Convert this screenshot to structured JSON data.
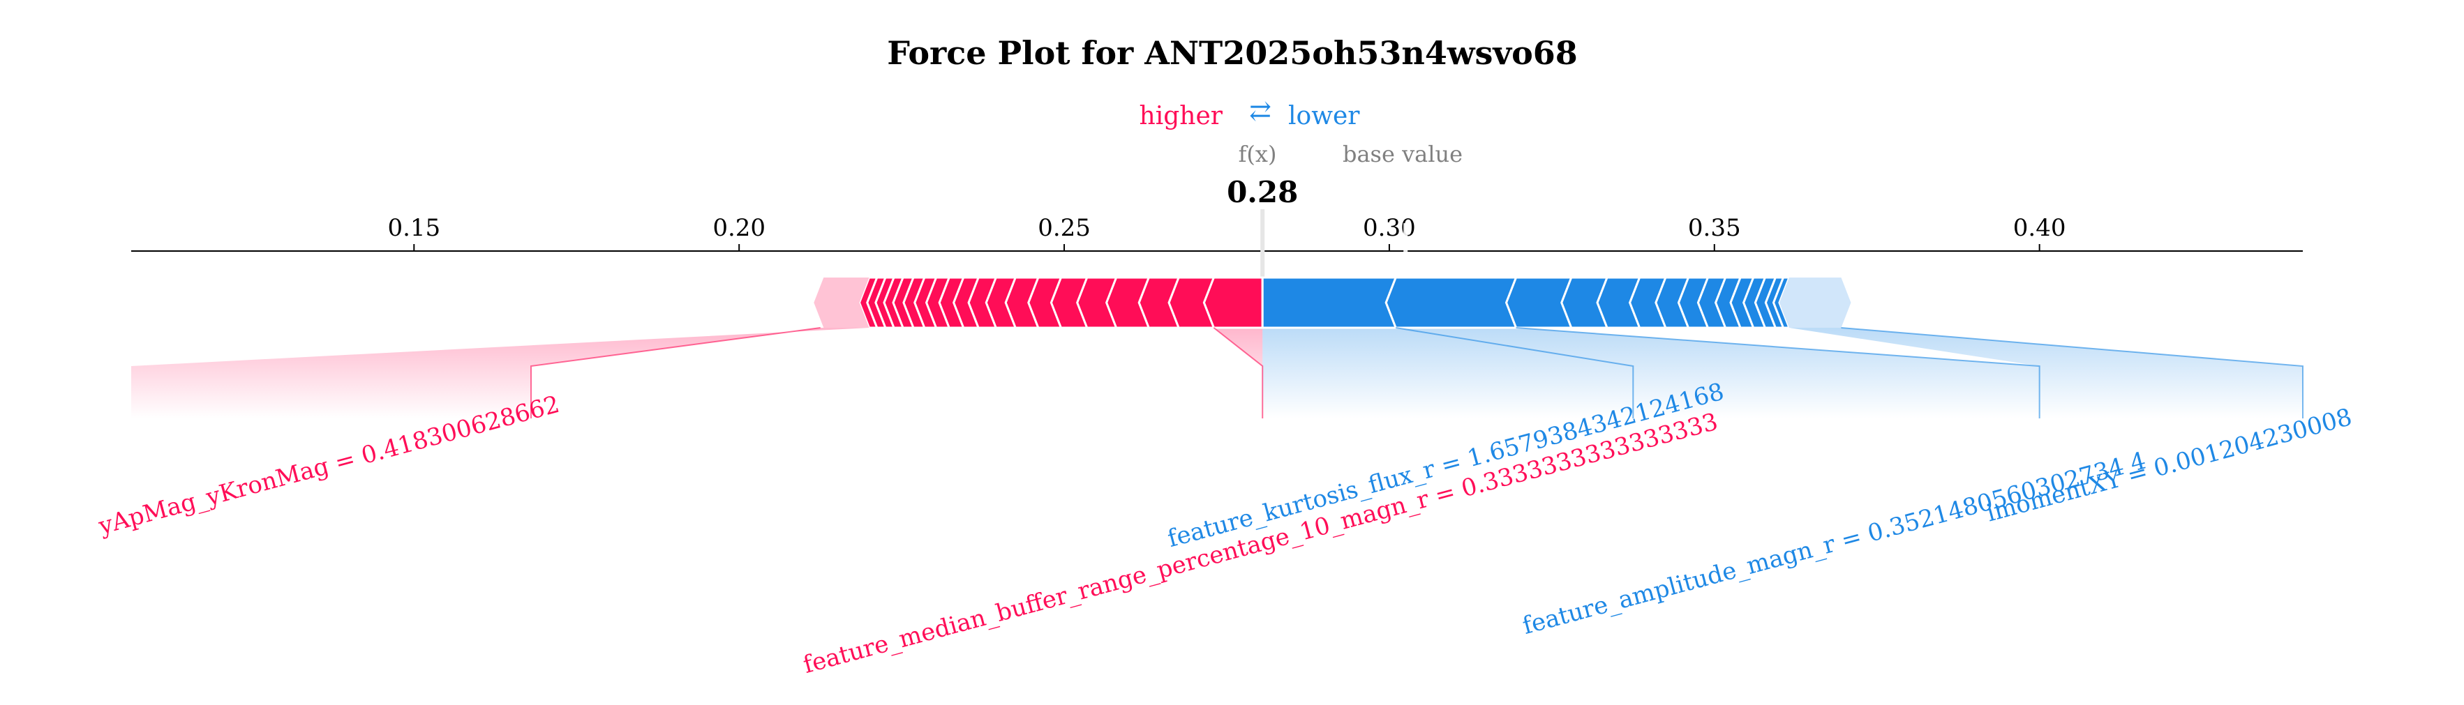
{
  "chart_data": {
    "type": "force_plot",
    "title": "Force Plot for ANT2025oh53n4wsvo68",
    "legend": {
      "higher_label": "higher",
      "arrow": "⇄",
      "lower_label": "lower"
    },
    "output_label": "f(x)",
    "base_label": "base value",
    "fx_value_text": "0.28",
    "fx": 0.2805,
    "base_value": 0.3025,
    "xlim": [
      0.1065,
      0.4405
    ],
    "xticks": [
      0.15,
      0.2,
      0.25,
      0.3,
      0.35,
      0.4
    ],
    "xtick_labels": [
      "0.15",
      "0.20",
      "0.25",
      "0.30",
      "0.35",
      "0.40"
    ],
    "colors": {
      "positive": "#ff0d57",
      "negative": "#1e88e5",
      "positive_light": "#ffc3d5",
      "negative_light": "#d1e6fa",
      "base_text": "#808080",
      "title": "#000000"
    },
    "positive_segments": [
      0.273,
      0.2676,
      0.263,
      0.258,
      0.2535,
      0.2495,
      0.246,
      0.2425,
      0.2395,
      0.2368,
      0.2345,
      0.2323,
      0.2303,
      0.2285,
      0.2268,
      0.2252,
      0.2238,
      0.2225,
      0.2212,
      0.22
    ],
    "positive_end": 0.213,
    "negative_segments": [
      0.301,
      0.3195,
      0.328,
      0.3335,
      0.3385,
      0.3425,
      0.346,
      0.349,
      0.3517,
      0.354,
      0.356,
      0.3578,
      0.3594,
      0.3606,
      0.3615
    ],
    "negative_end": 0.3695,
    "features": [
      {
        "label": "yApMag_yKronMag = 0.418300628662",
        "side": "positive",
        "seg_start": 0.22,
        "seg_end": 0.2125,
        "label_x": 0.1065,
        "label_x2": 0.168,
        "label_row": 0
      },
      {
        "label": "feature_median_buffer_range_percentage_10_magn_r = 0.3333333333333333",
        "side": "positive",
        "seg_start": 0.2805,
        "seg_end": 0.273,
        "label_x": 0.2805,
        "label_x2": 0.2805,
        "label_row": 1
      },
      {
        "label": "feature_kurtosis_flux_r = 1.6579384342124168",
        "side": "negative",
        "seg_start": 0.2805,
        "seg_end": 0.301,
        "label_x": 0.2805,
        "label_x2": 0.3375,
        "label_row": 0
      },
      {
        "label": "feature_amplitude_magn_r = 0.3521480560302734 4",
        "side": "negative",
        "seg_start": 0.301,
        "seg_end": 0.3195,
        "label_x": 0.3375,
        "label_x2": 0.4,
        "label_row": 1
      },
      {
        "label": "imomentXY = 0.001204230008",
        "side": "negative",
        "seg_start": 0.3615,
        "seg_end": 0.3695,
        "label_x": 0.4,
        "label_x2": 0.4405,
        "label_row": 0
      }
    ]
  }
}
